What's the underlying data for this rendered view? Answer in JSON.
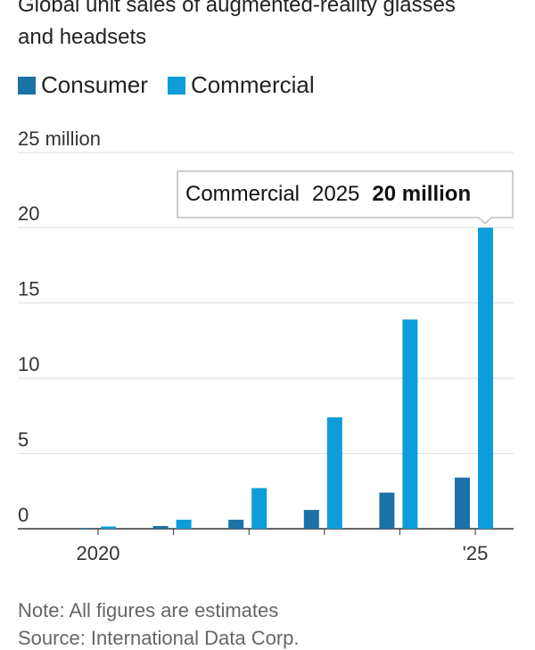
{
  "chart_data": {
    "type": "bar",
    "title": "Global unit sales of augmented-reality glasses and headsets",
    "categories": [
      "2020",
      null,
      null,
      null,
      null,
      "'25"
    ],
    "series": [
      {
        "name": "Consumer",
        "color": "#1a72a6",
        "values": [
          0.05,
          0.18,
          0.6,
          1.25,
          2.4,
          3.4
        ]
      },
      {
        "name": "Commercial",
        "color": "#0d9ddb",
        "values": [
          0.15,
          0.6,
          2.7,
          7.4,
          13.9,
          20
        ]
      }
    ],
    "ylim": [
      0,
      25
    ],
    "yticks": [
      0,
      5,
      10,
      15,
      20,
      {
        "value": 25,
        "label": "25 million"
      }
    ],
    "grid": true,
    "tooltip": {
      "series": "Commercial",
      "category": "2025",
      "value_label": "20 million"
    },
    "note": "Note: All figures are estimates",
    "source": "Source: International Data Corp."
  }
}
